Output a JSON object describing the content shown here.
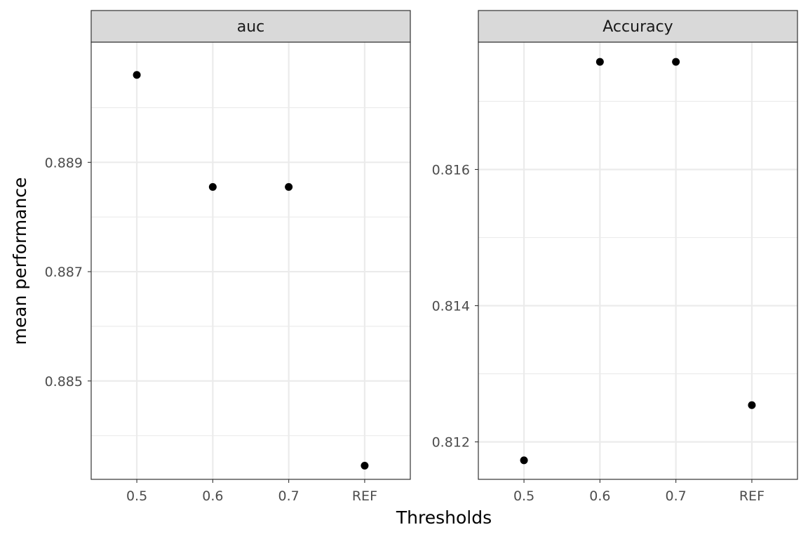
{
  "chart_data": {
    "type": "scatter",
    "xlabel": "Thresholds",
    "ylabel": "mean performance",
    "grid": true,
    "legend": "none",
    "point_color": "#000000",
    "strip_color": "#d9d9d9",
    "categories": [
      "0.5",
      "0.6",
      "0.7",
      "REF"
    ],
    "facets": [
      {
        "name": "auc",
        "x": [
          "0.5",
          "0.6",
          "0.7",
          "REF"
        ],
        "y": [
          0.8906,
          0.88855,
          0.88855,
          0.88345
        ],
        "ylim": [
          0.8832,
          0.8912
        ],
        "yticks": [
          0.885,
          0.887,
          0.889
        ],
        "ytick_labels": [
          "0.885",
          "0.887",
          "0.889"
        ]
      },
      {
        "name": "Accuracy",
        "x": [
          "0.5",
          "0.6",
          "0.7",
          "REF"
        ],
        "y": [
          0.81173,
          0.81758,
          0.81758,
          0.81254
        ],
        "ylim": [
          0.81145,
          0.81787
        ],
        "yticks": [
          0.812,
          0.814,
          0.816
        ],
        "ytick_labels": [
          "0.812",
          "0.814",
          "0.816"
        ]
      }
    ]
  }
}
